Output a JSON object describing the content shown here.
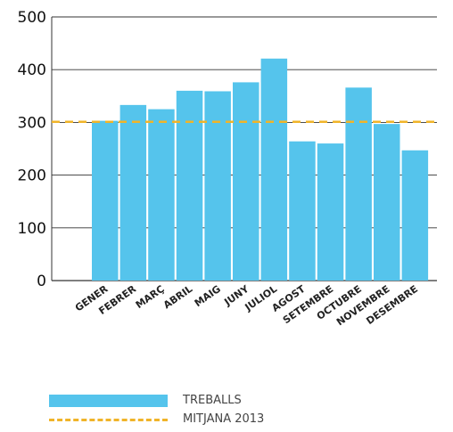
{
  "chart_data": {
    "type": "bar",
    "categories": [
      "GENER",
      "FEBRER",
      "MARÇ",
      "ABRIL",
      "MAIG",
      "JUNY",
      "JULIOL",
      "AGOST",
      "SETEMBRE",
      "OCTUBRE",
      "NOVEMBRE",
      "DESEMBRE"
    ],
    "series": [
      {
        "name": "TREBALLS",
        "color": "#55c4ec",
        "values": [
          303,
          333,
          325,
          360,
          359,
          376,
          421,
          264,
          260,
          366,
          297,
          247
        ]
      }
    ],
    "reference_line": {
      "name": "MITJANA 2013",
      "value": 301,
      "color": "#f0b429",
      "style": "dashed"
    },
    "yticks": [
      0,
      100,
      200,
      300,
      400,
      500
    ],
    "ylim": [
      0,
      500
    ],
    "grid": true,
    "legend_position": "bottom-left",
    "title": "",
    "xlabel": "",
    "ylabel": ""
  }
}
